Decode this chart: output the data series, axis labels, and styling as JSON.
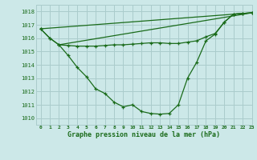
{
  "title": "Graphe pression niveau de la mer (hPa)",
  "bg_color": "#cce8e8",
  "grid_color": "#aacccc",
  "line_color": "#1a6b1a",
  "xlim": [
    -0.5,
    23
  ],
  "ylim": [
    1009.5,
    1018.5
  ],
  "yticks": [
    1010,
    1011,
    1012,
    1013,
    1014,
    1015,
    1016,
    1017,
    1018
  ],
  "xticks": [
    0,
    1,
    2,
    3,
    4,
    5,
    6,
    7,
    8,
    9,
    10,
    11,
    12,
    13,
    14,
    15,
    16,
    17,
    18,
    19,
    20,
    21,
    22,
    23
  ],
  "curve_main": {
    "x": [
      0,
      1,
      2,
      3,
      4,
      5,
      6,
      7,
      8,
      9,
      10,
      11,
      12,
      13,
      14,
      15,
      16,
      17,
      18,
      19,
      20,
      21,
      22,
      23
    ],
    "y": [
      1016.7,
      1016.0,
      1015.5,
      1014.7,
      1013.8,
      1013.1,
      1012.2,
      1011.85,
      1011.2,
      1010.85,
      1011.0,
      1010.5,
      1010.35,
      1010.3,
      1010.35,
      1011.0,
      1013.0,
      1014.2,
      1015.8,
      1016.3,
      1017.2,
      1017.8,
      1017.85,
      1017.9
    ]
  },
  "curve_flat": {
    "x": [
      0,
      1,
      2,
      3,
      4,
      5,
      6,
      7,
      8,
      9,
      10,
      11,
      12,
      13,
      14,
      15,
      16,
      17,
      18,
      19,
      20,
      21,
      22,
      23
    ],
    "y": [
      1016.7,
      1016.0,
      1015.5,
      1015.45,
      1015.4,
      1015.4,
      1015.4,
      1015.45,
      1015.5,
      1015.5,
      1015.55,
      1015.6,
      1015.65,
      1015.65,
      1015.6,
      1015.6,
      1015.7,
      1015.8,
      1016.1,
      1016.35,
      1017.2,
      1017.8,
      1017.85,
      1017.9
    ]
  },
  "diag1": {
    "x": [
      0,
      23
    ],
    "y": [
      1016.7,
      1017.9
    ]
  },
  "diag2": {
    "x": [
      2,
      23
    ],
    "y": [
      1015.5,
      1017.9
    ]
  }
}
